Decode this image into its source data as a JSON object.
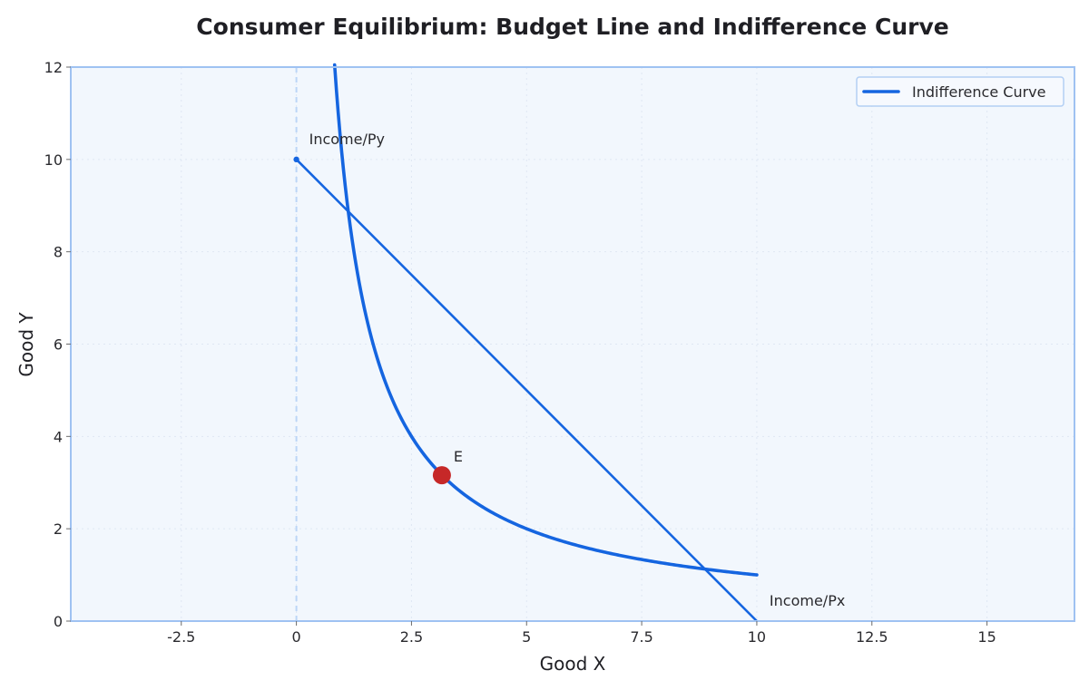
{
  "chart_data": {
    "type": "line",
    "title": "Consumer Equilibrium: Budget Line and Indifference Curve",
    "xlabel": "Good X",
    "ylabel": "Good Y",
    "xlim": [
      -4.9,
      16.9
    ],
    "ylim": [
      0,
      12
    ],
    "x_ticks": [
      -2.5,
      0,
      2.5,
      5,
      7.5,
      10,
      12.5,
      15
    ],
    "x_tick_labels": [
      "-2.5",
      "0",
      "2.5",
      "5",
      "7.5",
      "10",
      "12.5",
      "15"
    ],
    "y_ticks": [
      0,
      2,
      4,
      6,
      8,
      10,
      12
    ],
    "y_tick_labels": [
      "0",
      "2",
      "4",
      "6",
      "8",
      "10",
      "12"
    ],
    "grid": true,
    "legend_position": "top-right",
    "series": [
      {
        "name": "Indifference Curve",
        "kind": "curve",
        "function": "y = 10 / x",
        "x_range": [
          0.83,
          10
        ],
        "color": "#1565e0"
      },
      {
        "kind": "line",
        "points": [
          [
            0,
            10
          ],
          [
            10,
            0
          ]
        ],
        "color": "#1565e0"
      }
    ],
    "points": [
      {
        "label": "E",
        "x": 3.16,
        "y": 3.16,
        "color": "#c62828"
      },
      {
        "x": 0,
        "y": 10,
        "color": "#1565e0"
      }
    ],
    "annotations": [
      {
        "text": "Income/Py",
        "x": 0,
        "y": 10
      },
      {
        "text": "Income/Px",
        "x": 10,
        "y": 0
      }
    ],
    "vertical_reference": {
      "x": 0,
      "style": "dashed",
      "color": "#bcd6f7"
    },
    "colors": {
      "plot_background": "#f2f7fd",
      "frame": "#9fc2f2",
      "line": "#1565e0",
      "equilibrium": "#c62828"
    }
  }
}
